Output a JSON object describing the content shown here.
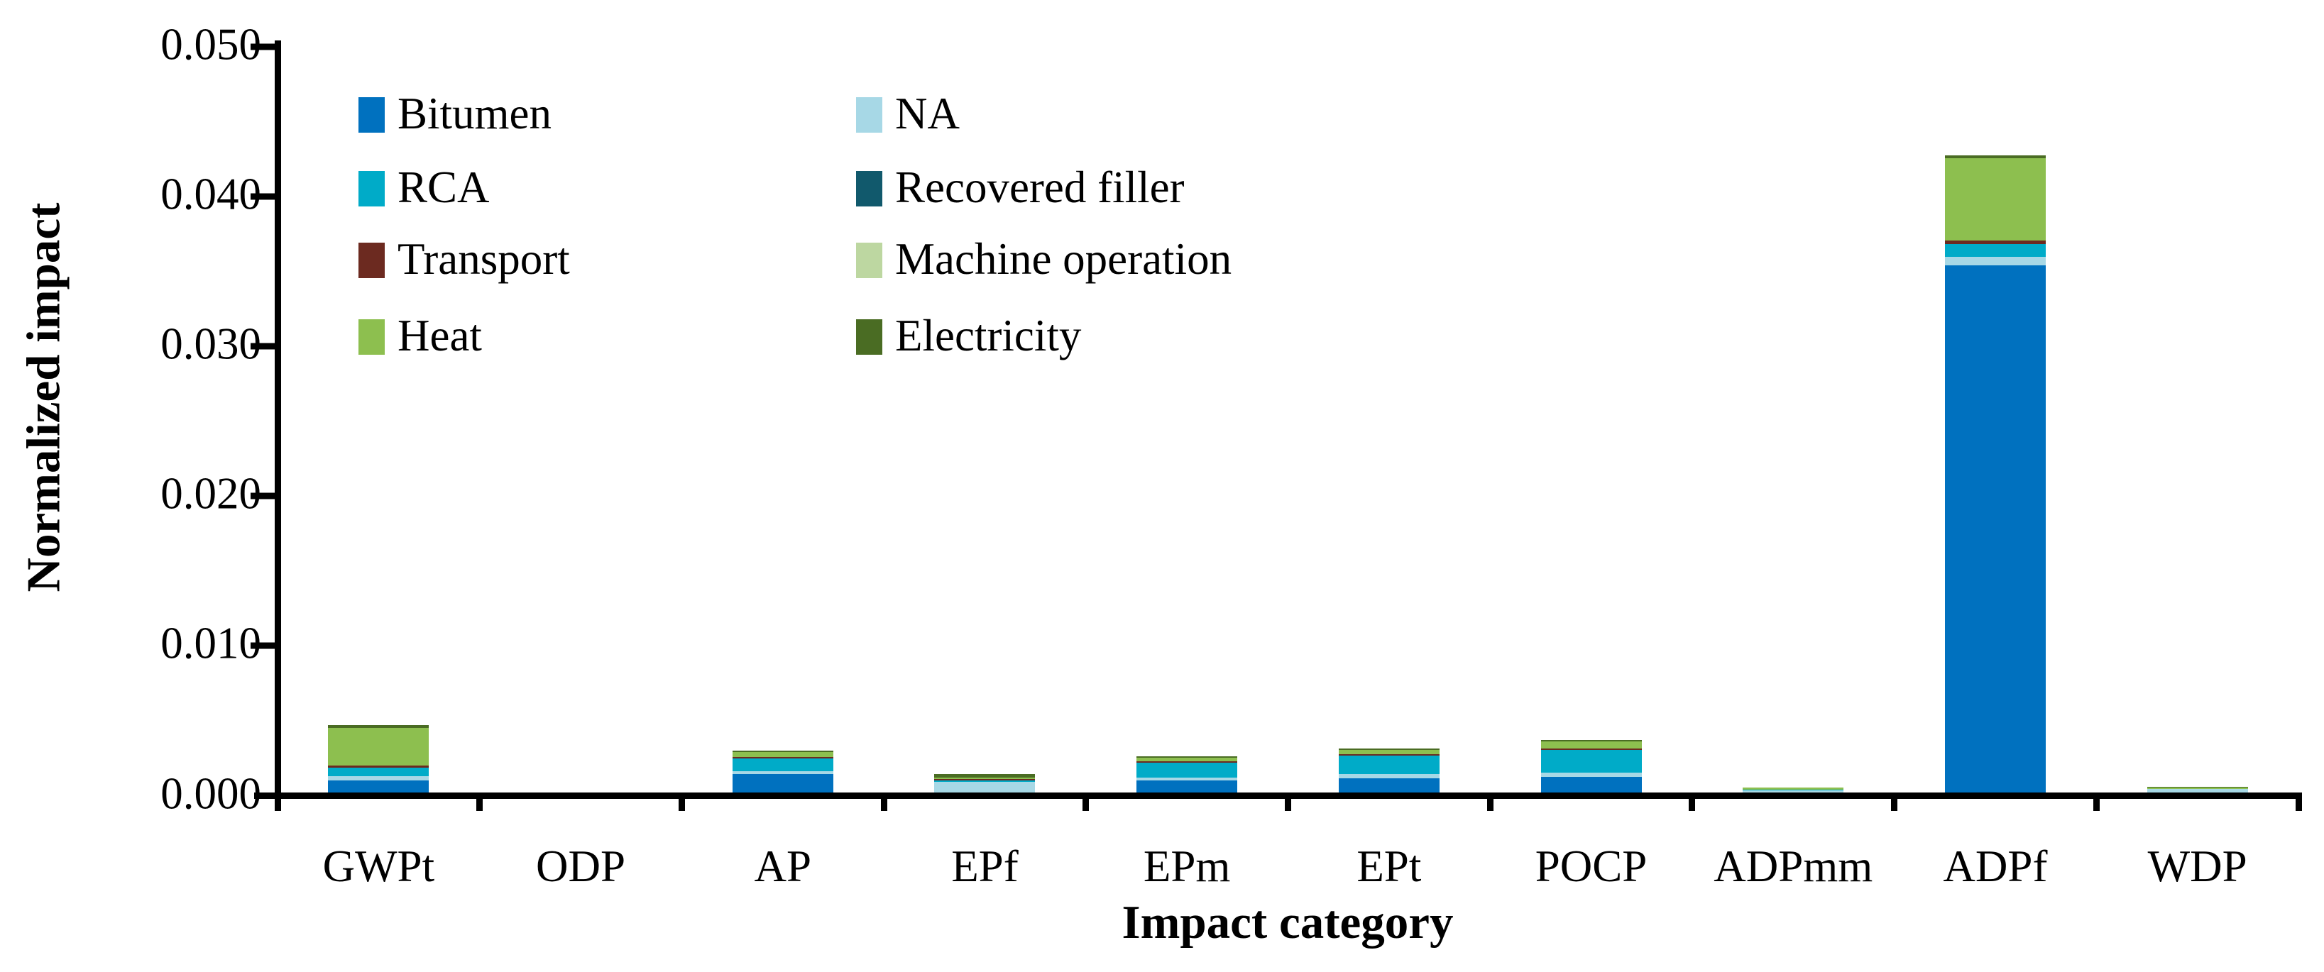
{
  "chart_data": {
    "type": "bar",
    "stacked": true,
    "title": "",
    "xlabel": "Impact category",
    "ylabel": "Normalized impact",
    "categories": [
      "GWPt",
      "ODP",
      "AP",
      "EPf",
      "EPm",
      "EPt",
      "POCP",
      "ADPmm",
      "ADPf",
      "WDP"
    ],
    "series": [
      {
        "name": "Bitumen",
        "color": "#0071BF",
        "values": [
          0.00079,
          0,
          0.00121,
          0,
          0.00082,
          0.00096,
          0.00106,
          0,
          0.0352,
          0
        ]
      },
      {
        "name": "NA",
        "color": "#A7D8E6",
        "values": [
          0.00028,
          0,
          0.0002,
          0.00071,
          0.00017,
          0.00025,
          0.00027,
          0.00015,
          0.00055,
          0.00025
        ]
      },
      {
        "name": "RCA",
        "color": "#00ABC8",
        "values": [
          0.00057,
          0,
          0.00087,
          9e-05,
          0.00101,
          0.00126,
          0.00151,
          4e-05,
          0.00087,
          0
        ]
      },
      {
        "name": "Recovered filler",
        "color": "#11596C",
        "values": [
          0,
          0,
          0,
          0,
          0,
          0,
          0,
          0,
          0,
          0
        ]
      },
      {
        "name": "Transport",
        "color": "#6C2A20",
        "values": [
          0.00014,
          0,
          0.00011,
          9e-05,
          9e-05,
          0.00011,
          8e-05,
          0,
          0.00024,
          0
        ]
      },
      {
        "name": "Machine operation",
        "color": "#BDD7A1",
        "values": [
          0,
          0,
          0,
          0,
          0,
          0,
          0,
          0,
          0,
          0
        ]
      },
      {
        "name": "Heat",
        "color": "#8DBF4F",
        "values": [
          0.00255,
          0,
          0.00033,
          0.00013,
          0.00025,
          0.00028,
          0.00049,
          0.00012,
          0.00547,
          0.0001
        ]
      },
      {
        "name": "Electricity",
        "color": "#4A6C23",
        "values": [
          0.00019,
          0,
          6e-05,
          0.00022,
          9e-05,
          8e-05,
          0.00011,
          4e-05,
          0.00017,
          3e-05
        ]
      }
    ],
    "ylim": [
      0,
      0.05
    ],
    "yticks": [
      "0.000",
      "0.010",
      "0.020",
      "0.030",
      "0.040",
      "0.050"
    ],
    "ytick_values": [
      0,
      0.01,
      0.02,
      0.03,
      0.04,
      0.05
    ],
    "grid": false,
    "legend_position": "top-left-inside",
    "legend_columns": [
      [
        "Bitumen",
        "RCA",
        "Transport",
        "Heat"
      ],
      [
        "NA",
        "Recovered filler",
        "Machine operation",
        "Electricity"
      ]
    ],
    "axis_color": "#000000",
    "text_color": "#000000"
  }
}
